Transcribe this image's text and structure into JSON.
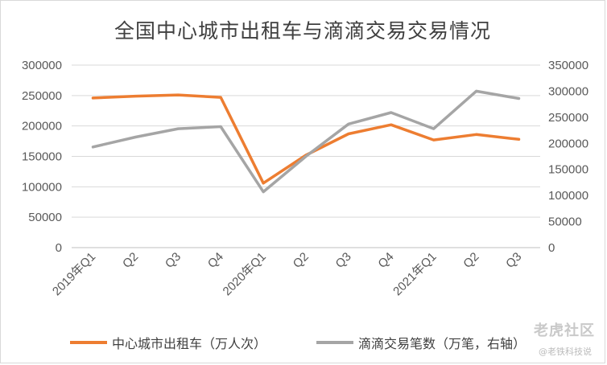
{
  "chart_data": {
    "type": "line",
    "title": "全国中心城市出租车与滴滴交易交易情况",
    "categories": [
      "2019年Q1",
      "Q2",
      "Q3",
      "Q4",
      "2020年Q1",
      "Q2",
      "Q3",
      "Q4",
      "2021年Q1",
      "Q2",
      "Q3"
    ],
    "y_left": {
      "min": 0,
      "max": 300000,
      "step": 50000,
      "ticks": [
        "0",
        "50000",
        "100000",
        "150000",
        "200000",
        "250000",
        "300000"
      ]
    },
    "y_right": {
      "min": 0,
      "max": 350000,
      "step": 50000,
      "ticks": [
        "0",
        "50000",
        "100000",
        "150000",
        "200000",
        "250000",
        "300000",
        "350000"
      ]
    },
    "grid": true,
    "legend_position": "bottom",
    "series": [
      {
        "name": "中心城市出租车（万人次）",
        "axis": "left",
        "color": "#ED7D31",
        "values": [
          246000,
          249000,
          251000,
          247000,
          106000,
          152000,
          187000,
          202000,
          177000,
          186000,
          178000
        ]
      },
      {
        "name": "滴滴交易笔数（万笔，右轴）",
        "axis": "right",
        "color": "#A5A5A5",
        "values": [
          193000,
          212000,
          228000,
          232000,
          107000,
          175000,
          237000,
          259000,
          228000,
          300000,
          286000
        ]
      }
    ]
  },
  "watermark": {
    "brand": "老虎社区",
    "handle": "@老铁科技说"
  }
}
